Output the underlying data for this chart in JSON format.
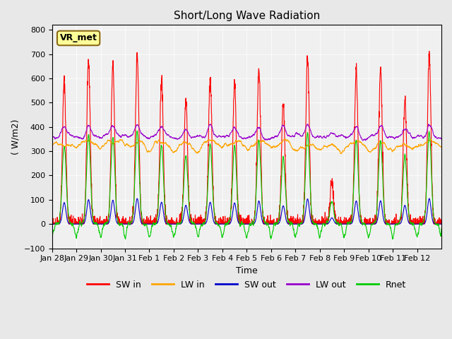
{
  "title": "Short/Long Wave Radiation",
  "xlabel": "Time",
  "ylabel": "( W/m2)",
  "ylim": [
    -100,
    820
  ],
  "yticks": [
    -100,
    0,
    100,
    200,
    300,
    400,
    500,
    600,
    700,
    800
  ],
  "background_color": "#e8e8e8",
  "plot_bg_color": "#f0f0f0",
  "annotation_text": "VR_met",
  "legend_entries": [
    "SW in",
    "LW in",
    "SW out",
    "LW out",
    "Rnet"
  ],
  "line_colors": {
    "SW in": "#ff0000",
    "LW in": "#ffa500",
    "SW out": "#0000cc",
    "LW out": "#9900cc",
    "Rnet": "#00cc00"
  },
  "n_days": 16,
  "sw_peaks": [
    590,
    670,
    655,
    700,
    600,
    515,
    600,
    580,
    635,
    500,
    690,
    170,
    635,
    640,
    515,
    700
  ],
  "x_tick_labels": [
    "Jan 28",
    "Jan 29",
    "Jan 30",
    "Jan 31",
    "Feb 1",
    "Feb 2",
    "Feb 3",
    "Feb 4",
    "Feb 5",
    "Feb 6",
    "Feb 7",
    "Feb 8",
    "Feb 9",
    "Feb 10",
    "Feb 11",
    "Feb 12"
  ]
}
